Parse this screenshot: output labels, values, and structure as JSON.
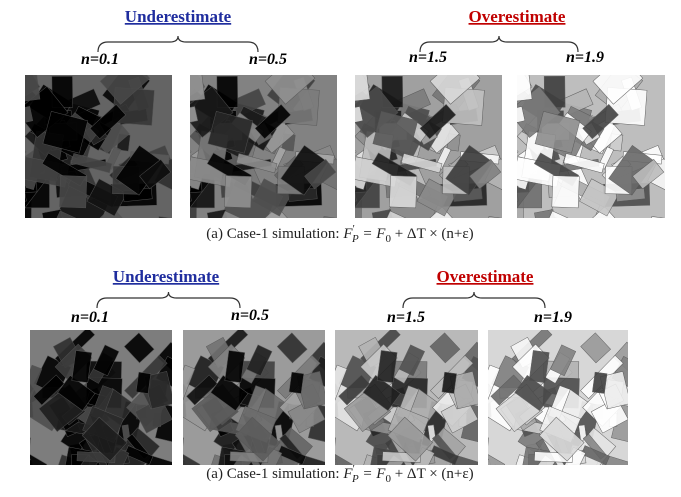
{
  "panels": [
    {
      "groups": [
        {
          "title": "Underestimate",
          "labels": [
            "n=0.1",
            "n=0.5"
          ]
        },
        {
          "title": "Overestimate",
          "labels": [
            "n=1.5",
            "n=1.9"
          ]
        }
      ],
      "caption": {
        "prefix": "(a) Case-1 simulation: ",
        "lhs": "F",
        "lhs_sup": "′",
        "lhs_sub": "P",
        "eq": " = F",
        "rhs_sub": "0",
        "rest": " + ΔT × (n+ε)"
      }
    },
    {
      "groups": [
        {
          "title": "Underestimate",
          "labels": [
            "n=0.1",
            "n=0.5"
          ]
        },
        {
          "title": "Overestimate",
          "labels": [
            "n=1.5",
            "n=1.9"
          ]
        }
      ],
      "caption": {
        "prefix": "(a) Case-1 simulation: ",
        "lhs": "F",
        "lhs_sup": "′",
        "lhs_sub": "P",
        "eq": " = F",
        "rhs_sub": "0",
        "rest": " + ΔT × (n+ε)"
      }
    }
  ]
}
